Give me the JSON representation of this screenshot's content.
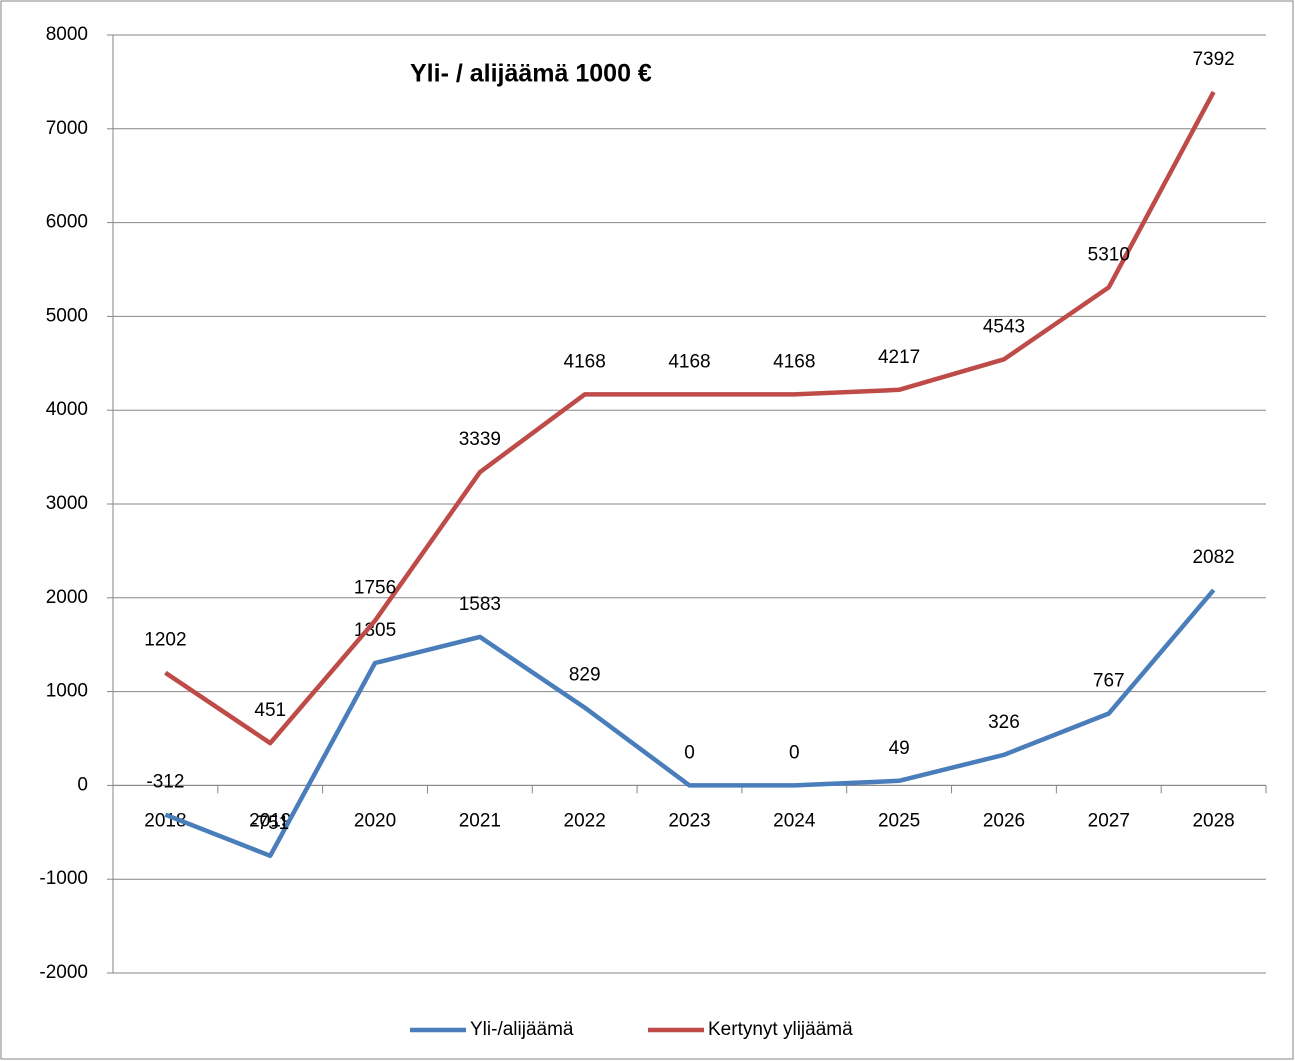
{
  "chart_data": {
    "type": "line",
    "title": "Yli- / alijäämä 1000 €",
    "categories": [
      "2018",
      "2019",
      "2020",
      "2021",
      "2022",
      "2023",
      "2024",
      "2025",
      "2026",
      "2027",
      "2028"
    ],
    "series": [
      {
        "name": "Yli-/alijäämä",
        "color": "#4a7ebb",
        "values": [
          -312,
          -751,
          1305,
          1583,
          829,
          0,
          0,
          49,
          326,
          767,
          2082
        ]
      },
      {
        "name": "Kertynyt ylijäämä",
        "color": "#be4b48",
        "values": [
          1202,
          451,
          1756,
          3339,
          4168,
          4168,
          4168,
          4217,
          4543,
          5310,
          7392
        ]
      }
    ],
    "ylim": [
      -2000,
      8000
    ],
    "yticks": [
      -2000,
      -1000,
      0,
      1000,
      2000,
      3000,
      4000,
      5000,
      6000,
      7000,
      8000
    ],
    "grid": true,
    "legend": "bottom"
  }
}
